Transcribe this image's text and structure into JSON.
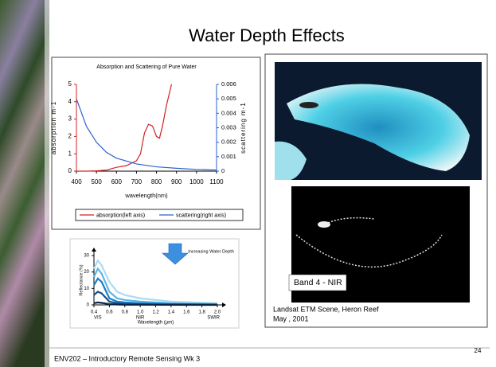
{
  "slide": {
    "title": "Water Depth Effects",
    "footer": "ENV202 – Introductory Remote Sensing Wk 3",
    "page_number": "24",
    "image_label": "Band 4 - NIR",
    "caption": [
      "Landsat ETM Scene, Heron Reef",
      "May , 2001"
    ]
  },
  "chart_data": [
    {
      "type": "line",
      "title": "Absorption and Scattering of Pure Water",
      "x_label": "wavelength(nm)",
      "y_label": "absorption m-1",
      "y2_label": "scattering m-1",
      "xlim": [
        400,
        1100
      ],
      "xticks": [
        400,
        500,
        600,
        700,
        800,
        900,
        1000,
        1100
      ],
      "ylim": [
        0,
        5
      ],
      "yticks": [
        0,
        1,
        2,
        3,
        4,
        5
      ],
      "y2lim": [
        0,
        0.006
      ],
      "y2ticks": [
        0,
        0.001,
        0.002,
        0.003,
        0.004,
        0.005,
        0.006
      ],
      "series": [
        {
          "name": "absorption(left axis)",
          "color": "#d42020",
          "x": [
            400,
            450,
            500,
            550,
            600,
            650,
            700,
            720,
            740,
            760,
            780,
            800,
            815,
            830,
            850,
            875
          ],
          "values": [
            0.0,
            0.0,
            0.02,
            0.06,
            0.22,
            0.32,
            0.6,
            1.0,
            2.2,
            2.7,
            2.6,
            2.0,
            1.9,
            2.6,
            3.8,
            5.0
          ]
        },
        {
          "name": "scattering(right axis)",
          "color": "#2f5fd0",
          "axis": "y2",
          "x": [
            400,
            450,
            500,
            550,
            600,
            700,
            800,
            900,
            1000,
            1100
          ],
          "values": [
            0.005,
            0.0031,
            0.002,
            0.0013,
            0.0009,
            0.0005,
            0.0003,
            0.0002,
            0.00012,
            8e-05
          ]
        }
      ]
    },
    {
      "type": "line",
      "x_label": "Wavelength (µm)",
      "y_label": "Reflectance (%)",
      "annotation": "Increasing Water Depth",
      "regions": [
        "VIS",
        "NIR",
        "SWIR"
      ],
      "xlim": [
        0.4,
        2.0
      ],
      "xticks": [
        0.4,
        0.6,
        0.8,
        {
          "value": 1,
          "label": "1.0"
        },
        1.2,
        1.4,
        1.6,
        1.8,
        {
          "value": 2,
          "label": "2.0"
        }
      ],
      "ylim": [
        0,
        30
      ],
      "yticks": [
        0,
        10,
        20,
        30
      ],
      "series": [
        {
          "color": "#a9dcf3",
          "x": [
            0.4,
            0.45,
            0.5,
            0.6,
            0.7,
            0.8,
            1.0,
            1.4,
            2.0
          ],
          "values": [
            22,
            27,
            24,
            14,
            8,
            6,
            4,
            2,
            1
          ]
        },
        {
          "color": "#5bb5e6",
          "x": [
            0.4,
            0.45,
            0.5,
            0.6,
            0.7,
            0.8,
            1.0,
            1.4,
            2.0
          ],
          "values": [
            17,
            22,
            19,
            8,
            4,
            3,
            2,
            1,
            0.5
          ]
        },
        {
          "color": "#1b7cc8",
          "x": [
            0.4,
            0.45,
            0.5,
            0.6,
            0.7,
            0.8,
            1.0,
            1.4,
            2.0
          ],
          "values": [
            12,
            16,
            14,
            4,
            2,
            1.5,
            1,
            0.5,
            0.3
          ]
        },
        {
          "color": "#0e4f8a",
          "x": [
            0.4,
            0.45,
            0.5,
            0.6,
            0.7,
            0.8,
            1.0,
            1.4,
            2.0
          ],
          "values": [
            6,
            8,
            7,
            2,
            1,
            0.6,
            0.4,
            0.2,
            0.1
          ]
        },
        {
          "color": "#0a2747",
          "x": [
            0.4,
            0.45,
            0.5,
            0.6,
            0.7,
            0.8,
            1.0,
            1.4,
            2.0
          ],
          "values": [
            1,
            1.5,
            1.2,
            0.5,
            0.2,
            0.1,
            0.1,
            0.05,
            0
          ]
        }
      ]
    }
  ]
}
